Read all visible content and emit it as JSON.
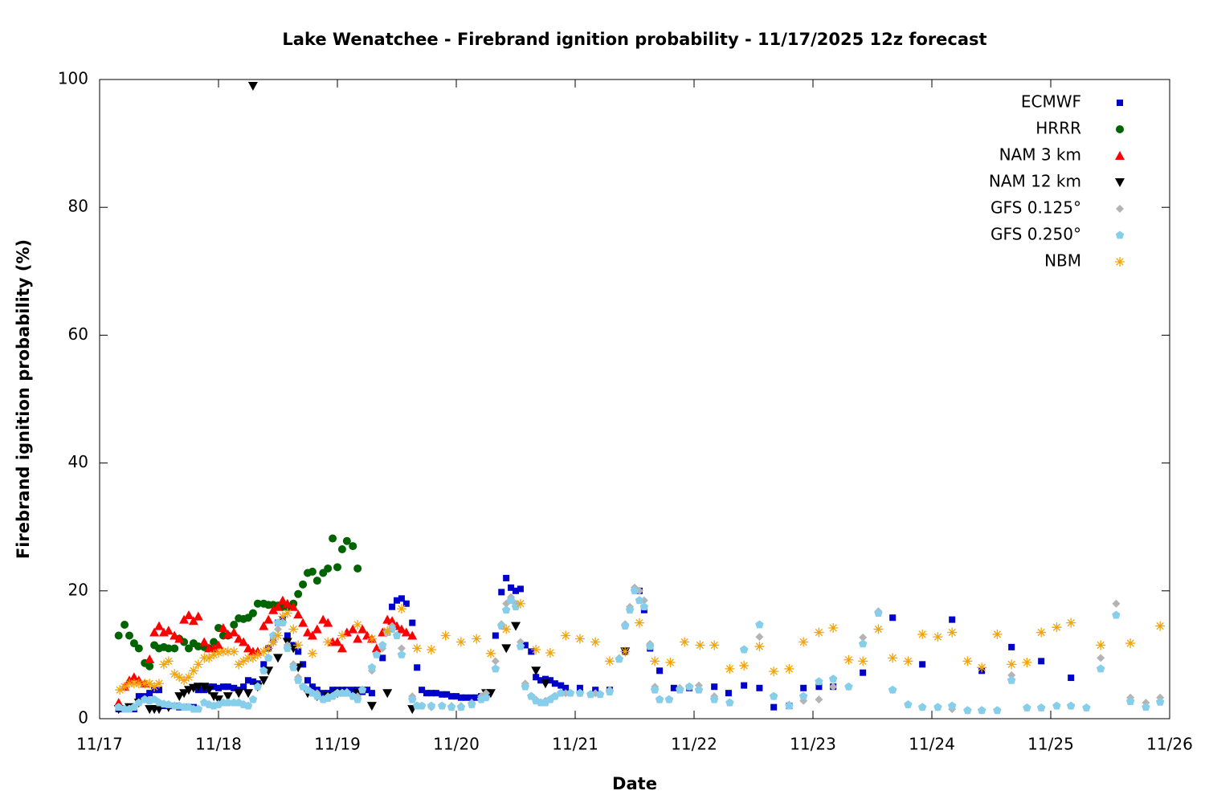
{
  "chart_data": {
    "type": "scatter",
    "title": "Lake Wenatchee - Firebrand ignition probability - 11/17/2025 12z forecast",
    "x_label": "Date",
    "y_label": "Firebrand ignition probability (%)",
    "xlim": [
      0,
      9
    ],
    "xticks": [
      {
        "value": 0,
        "label": "11/17"
      },
      {
        "value": 1,
        "label": "11/18"
      },
      {
        "value": 2,
        "label": "11/19"
      },
      {
        "value": 3,
        "label": "11/20"
      },
      {
        "value": 4,
        "label": "11/21"
      },
      {
        "value": 5,
        "label": "11/22"
      },
      {
        "value": 6,
        "label": "11/23"
      },
      {
        "value": 7,
        "label": "11/24"
      },
      {
        "value": 8,
        "label": "11/25"
      },
      {
        "value": 9,
        "label": "11/26"
      }
    ],
    "ylim": [
      0,
      100
    ],
    "yticks": [
      0,
      20,
      40,
      60,
      80,
      100
    ],
    "grid": false,
    "legend": "upper right",
    "series": [
      {
        "name": "ECMWF",
        "color": "#0000cc",
        "marker": "square",
        "x": [
          0.16,
          0.21,
          0.25,
          0.29,
          0.33,
          0.38,
          0.42,
          0.46,
          0.5,
          0.54,
          0.58,
          0.63,
          0.67,
          0.71,
          0.75,
          0.79,
          0.83,
          0.88,
          0.92,
          0.96,
          1.0,
          1.04,
          1.08,
          1.13,
          1.17,
          1.21,
          1.25,
          1.29,
          1.33,
          1.38,
          1.42,
          1.46,
          1.5,
          1.54,
          1.58,
          1.63,
          1.67,
          1.71,
          1.75,
          1.79,
          1.83,
          1.88,
          1.92,
          1.96,
          2.0,
          2.04,
          2.08,
          2.13,
          2.17,
          2.21,
          2.25,
          2.29,
          2.38,
          2.42,
          2.46,
          2.5,
          2.54,
          2.58,
          2.63,
          2.67,
          2.71,
          2.75,
          2.79,
          2.83,
          2.88,
          2.92,
          2.96,
          3.0,
          3.04,
          3.08,
          3.13,
          3.17,
          3.21,
          3.25,
          3.33,
          3.38,
          3.42,
          3.46,
          3.5,
          3.54,
          3.58,
          3.63,
          3.67,
          3.71,
          3.75,
          3.79,
          3.83,
          3.88,
          3.92,
          4.04,
          4.17,
          4.29,
          4.42,
          4.54,
          4.58,
          4.63,
          4.71,
          4.83,
          4.96,
          5.17,
          5.29,
          5.42,
          5.55,
          5.67,
          5.8,
          5.92,
          6.05,
          6.17,
          6.42,
          6.67,
          6.92,
          7.17,
          7.42,
          7.67,
          7.92,
          8.17
        ],
        "values": [
          1.5,
          1.5,
          1.5,
          1.5,
          3.5,
          3.5,
          4,
          4.5,
          4.5,
          2,
          2,
          2,
          1.8,
          1.8,
          1.8,
          1.8,
          4.5,
          4.5,
          5,
          5,
          4.8,
          5,
          5,
          4.8,
          4.5,
          5,
          6,
          5.8,
          5.5,
          8.5,
          11,
          12.5,
          15,
          15.5,
          13,
          11.5,
          10.5,
          8.5,
          6,
          5,
          4.5,
          4,
          4,
          4.5,
          4.5,
          4.5,
          4.5,
          4.5,
          4.5,
          4.2,
          4.5,
          4,
          9.5,
          13.5,
          17.5,
          18.5,
          18.8,
          18,
          15,
          8,
          4.5,
          4,
          4,
          4,
          3.8,
          3.8,
          3.5,
          3.5,
          3.3,
          3.3,
          3.3,
          3.3,
          3.5,
          4,
          13,
          19.8,
          22,
          20.5,
          20,
          20.3,
          11.5,
          10.5,
          6.5,
          6,
          6.2,
          6,
          5.5,
          5.2,
          4.8,
          4.8,
          4.5,
          4.5,
          10.5,
          20,
          17,
          11,
          7.5,
          4.8,
          4.8,
          5,
          4,
          5.2,
          4.8,
          1.8,
          2,
          4.8,
          5,
          5,
          7.2,
          15.8,
          8.5,
          15.5,
          7.5,
          11.2,
          9,
          6.4
        ]
      },
      {
        "name": "HRRR",
        "color": "#006400",
        "marker": "circle",
        "x": [
          0.16,
          0.21,
          0.25,
          0.29,
          0.33,
          0.38,
          0.42,
          0.46,
          0.5,
          0.54,
          0.58,
          0.63,
          0.67,
          0.71,
          0.75,
          0.79,
          0.83,
          0.88,
          0.92,
          0.96,
          1.0,
          1.04,
          1.08,
          1.13,
          1.17,
          1.21,
          1.25,
          1.29,
          1.33,
          1.38,
          1.42,
          1.46,
          1.5,
          1.54,
          1.58,
          1.63,
          1.67,
          1.71,
          1.75,
          1.79,
          1.83,
          1.88,
          1.92,
          1.96,
          2.0,
          2.04,
          2.08,
          2.13,
          2.17
        ],
        "values": [
          13,
          14.7,
          13,
          11.8,
          11,
          8.7,
          8.2,
          11.5,
          11,
          11.2,
          11,
          11,
          12.5,
          12,
          11,
          11.8,
          11.3,
          11.2,
          11,
          12,
          14.2,
          13,
          13,
          14.7,
          15.7,
          15.6,
          15.8,
          16.5,
          18,
          18,
          17.8,
          17.8,
          17.7,
          17.5,
          17.5,
          18,
          19.5,
          21,
          22.8,
          23,
          21.6,
          22.8,
          23.5,
          28.2,
          23.7,
          26.5,
          27.8,
          27,
          23.5
        ]
      },
      {
        "name": "NAM 3 km",
        "color": "#ff0000",
        "marker": "triangle-up",
        "x": [
          0.16,
          0.21,
          0.25,
          0.29,
          0.33,
          0.38,
          0.42,
          0.46,
          0.5,
          0.54,
          0.58,
          0.63,
          0.67,
          0.71,
          0.75,
          0.79,
          0.83,
          0.88,
          0.92,
          0.96,
          1.0,
          1.04,
          1.08,
          1.13,
          1.17,
          1.21,
          1.25,
          1.29,
          1.33,
          1.38,
          1.42,
          1.46,
          1.5,
          1.54,
          1.58,
          1.63,
          1.67,
          1.71,
          1.75,
          1.79,
          1.83,
          1.88,
          1.92,
          1.96,
          2.0,
          2.04,
          2.08,
          2.13,
          2.17,
          2.21,
          2.25,
          2.29,
          2.33,
          2.38,
          2.42,
          2.46,
          2.5,
          2.54,
          2.58,
          2.63
        ],
        "values": [
          2.5,
          5,
          6,
          6.5,
          6,
          5.5,
          9.3,
          13.5,
          14.5,
          13.5,
          13.8,
          13,
          12.5,
          15.5,
          16.2,
          15.3,
          16,
          12,
          11,
          11,
          11.5,
          14.2,
          13.2,
          13.5,
          12.5,
          12,
          11,
          10.5,
          10.5,
          14.5,
          15.5,
          17,
          17.5,
          18.5,
          18,
          17.5,
          16.3,
          15,
          13.5,
          13,
          14,
          15.5,
          15,
          12,
          12,
          11,
          13.5,
          14,
          12.5,
          14,
          13,
          12.5,
          11,
          13.5,
          15.5,
          15.3,
          14.5,
          14,
          13.5,
          13
        ]
      },
      {
        "name": "NAM 12 km",
        "color": "#000000",
        "marker": "triangle-down",
        "x": [
          0.16,
          0.25,
          0.33,
          0.42,
          0.46,
          0.5,
          0.58,
          0.67,
          0.71,
          0.75,
          0.79,
          0.83,
          0.88,
          0.92,
          0.96,
          1.0,
          1.08,
          1.17,
          1.25,
          1.29,
          1.33,
          1.38,
          1.42,
          1.5,
          1.58,
          1.63,
          1.67,
          1.75,
          1.83,
          1.92,
          2.0,
          2.17,
          2.29,
          2.42,
          2.63,
          3.25,
          3.29,
          3.42,
          3.5,
          3.67,
          3.75,
          4.42
        ],
        "values": [
          1.5,
          1.8,
          2.5,
          1.5,
          1.5,
          1.5,
          1.8,
          3.5,
          4,
          4.5,
          4.8,
          5,
          5,
          4.5,
          3.5,
          3,
          3.5,
          4,
          4,
          99,
          5,
          6,
          7.5,
          9.5,
          12,
          11,
          8,
          4,
          3.5,
          3.5,
          4,
          4,
          2,
          4,
          1.5,
          4,
          4,
          11,
          14.5,
          7.5,
          5.5,
          10.5
        ]
      },
      {
        "name": "GFS 0.125°",
        "color": "#b4b4b4",
        "marker": "diamond",
        "x": [
          1.46,
          1.5,
          1.54,
          1.58,
          1.63,
          1.67,
          1.75,
          1.83,
          1.92,
          2.0,
          2.08,
          2.17,
          2.29,
          2.38,
          2.46,
          2.54,
          2.63,
          2.71,
          2.79,
          2.88,
          2.96,
          3.04,
          3.13,
          3.21,
          3.25,
          3.33,
          3.38,
          3.42,
          3.46,
          3.5,
          3.54,
          3.58,
          3.67,
          3.75,
          3.83,
          3.92,
          4.04,
          4.17,
          4.29,
          4.37,
          4.42,
          4.46,
          4.5,
          4.54,
          4.58,
          4.63,
          4.67,
          4.71,
          4.79,
          4.88,
          4.96,
          5.04,
          5.17,
          5.3,
          5.42,
          5.55,
          5.67,
          5.8,
          5.92,
          6.05,
          6.17,
          6.3,
          6.42,
          6.55,
          6.67,
          6.8,
          6.92,
          7.05,
          7.17,
          7.3,
          7.42,
          7.55,
          7.67,
          7.8,
          7.92,
          8.05,
          8.17,
          8.3,
          8.42,
          8.55,
          8.67,
          8.8,
          8.92
        ],
        "values": [
          12,
          14,
          15,
          11.5,
          8.5,
          6.5,
          4.5,
          4,
          3.5,
          4,
          4.2,
          3.5,
          7.5,
          11,
          14.5,
          11,
          3.5,
          2,
          1.8,
          2,
          2,
          2,
          2.5,
          3.5,
          4,
          9,
          14.8,
          18,
          19,
          18,
          12,
          5.5,
          3,
          2.8,
          3.5,
          4,
          4,
          4,
          4.5,
          9.5,
          14.8,
          17.5,
          20.5,
          20,
          18.5,
          11.7,
          5,
          3,
          3,
          4.8,
          5,
          5.2,
          3.5,
          2.5,
          10.8,
          12.8,
          3.5,
          2.2,
          2.8,
          3,
          5,
          5,
          12.7,
          16.8,
          4.5,
          2.2,
          1.8,
          1.8,
          1.5,
          1.3,
          1.3,
          1.3,
          6.8,
          1.7,
          1.7,
          2,
          2,
          1.7,
          9.5,
          18,
          3.3,
          2.5,
          3.3
        ]
      },
      {
        "name": "GFS 0.250°",
        "color": "#87ceeb",
        "marker": "pentagon",
        "x": [
          0.16,
          0.21,
          0.25,
          0.29,
          0.33,
          0.38,
          0.42,
          0.46,
          0.5,
          0.54,
          0.58,
          0.63,
          0.67,
          0.71,
          0.75,
          0.79,
          0.83,
          0.88,
          0.92,
          0.96,
          1.0,
          1.04,
          1.08,
          1.13,
          1.17,
          1.21,
          1.25,
          1.29,
          1.33,
          1.38,
          1.42,
          1.46,
          1.5,
          1.54,
          1.58,
          1.63,
          1.67,
          1.71,
          1.75,
          1.79,
          1.83,
          1.88,
          1.92,
          1.96,
          2.0,
          2.04,
          2.08,
          2.13,
          2.17,
          2.21,
          2.29,
          2.33,
          2.38,
          2.42,
          2.46,
          2.5,
          2.54,
          2.63,
          2.67,
          2.71,
          2.79,
          2.88,
          2.96,
          3.04,
          3.13,
          3.21,
          3.25,
          3.33,
          3.38,
          3.42,
          3.46,
          3.5,
          3.54,
          3.58,
          3.63,
          3.67,
          3.71,
          3.75,
          3.79,
          3.83,
          3.88,
          3.96,
          4.04,
          4.13,
          4.21,
          4.29,
          4.37,
          4.42,
          4.46,
          4.5,
          4.54,
          4.58,
          4.63,
          4.67,
          4.71,
          4.79,
          4.88,
          4.96,
          5.04,
          5.17,
          5.3,
          5.42,
          5.55,
          5.67,
          5.8,
          5.92,
          6.05,
          6.17,
          6.3,
          6.42,
          6.55,
          6.67,
          6.8,
          6.92,
          7.05,
          7.17,
          7.3,
          7.42,
          7.55,
          7.67,
          7.8,
          7.92,
          8.05,
          8.17,
          8.3,
          8.42,
          8.55,
          8.67,
          8.8,
          8.92
        ],
        "values": [
          1.8,
          1.5,
          1.5,
          1.8,
          2.5,
          3,
          2.8,
          3,
          2.5,
          2.3,
          2.2,
          2,
          2,
          1.8,
          1.8,
          1.5,
          1.5,
          2.5,
          2.2,
          2,
          2.2,
          2.5,
          2.5,
          2.5,
          2.5,
          2.2,
          2,
          3,
          5,
          7.5,
          9.5,
          13,
          15,
          15,
          11,
          8,
          6,
          5,
          4.5,
          4,
          3.5,
          3,
          3.2,
          3.5,
          4,
          4,
          4,
          3.5,
          3,
          4.5,
          8,
          10,
          11.5,
          13.5,
          14,
          13,
          10,
          3,
          2,
          2,
          2,
          2,
          1.8,
          1.8,
          2.2,
          3,
          3.3,
          7.8,
          14.5,
          17,
          18.5,
          17.5,
          11.3,
          5,
          3.5,
          2.8,
          2.5,
          2.5,
          3,
          3.5,
          4,
          4,
          4,
          3.8,
          3.8,
          4.2,
          9.3,
          14.5,
          17,
          20,
          18.5,
          17.5,
          11.3,
          4.5,
          3,
          3,
          4.5,
          5,
          4.5,
          3,
          2.5,
          10.8,
          14.7,
          3.5,
          2,
          3.5,
          5.8,
          6.2,
          5,
          11.7,
          16.5,
          4.5,
          2.2,
          1.8,
          1.8,
          2,
          1.3,
          1.3,
          1.3,
          6,
          1.7,
          1.7,
          2,
          2,
          1.7,
          7.8,
          16.2,
          2.7,
          1.8,
          2.6
        ]
      },
      {
        "name": "NBM",
        "color": "#f5a300",
        "marker": "asterisk",
        "x": [
          0.17,
          0.21,
          0.25,
          0.29,
          0.33,
          0.38,
          0.42,
          0.46,
          0.5,
          0.54,
          0.58,
          0.63,
          0.67,
          0.71,
          0.75,
          0.79,
          0.83,
          0.88,
          0.92,
          0.96,
          1.0,
          1.04,
          1.08,
          1.13,
          1.17,
          1.21,
          1.25,
          1.29,
          1.33,
          1.38,
          1.42,
          1.46,
          1.5,
          1.54,
          1.58,
          1.63,
          1.67,
          1.79,
          1.92,
          2.04,
          2.17,
          2.29,
          2.42,
          2.54,
          2.67,
          2.79,
          2.91,
          3.04,
          3.17,
          3.29,
          3.42,
          3.54,
          3.67,
          3.79,
          3.92,
          4.04,
          4.17,
          4.29,
          4.42,
          4.54,
          4.67,
          4.8,
          4.92,
          5.05,
          5.17,
          5.3,
          5.42,
          5.55,
          5.67,
          5.8,
          5.92,
          6.05,
          6.17,
          6.3,
          6.42,
          6.55,
          6.67,
          6.8,
          6.92,
          7.05,
          7.17,
          7.3,
          7.42,
          7.55,
          7.67,
          7.8,
          7.92,
          8.05,
          8.17,
          8.42,
          8.67,
          8.92
        ],
        "values": [
          4.5,
          5,
          5.5,
          5.5,
          5.5,
          5.5,
          5.5,
          5,
          5.5,
          8.5,
          9,
          7,
          6.5,
          6,
          6.5,
          7.5,
          8.5,
          9.5,
          9.5,
          10,
          10.3,
          10.5,
          10.5,
          10.5,
          8.5,
          9,
          9.5,
          9.5,
          10,
          10.5,
          11,
          12,
          13,
          16,
          16.5,
          14,
          11.5,
          10.2,
          12,
          13,
          14.7,
          12.5,
          13.7,
          17.2,
          11,
          10.8,
          13,
          12,
          12.5,
          10.2,
          14,
          18,
          10.8,
          10.3,
          13,
          12.5,
          12,
          9,
          10.5,
          15,
          9,
          8.8,
          12,
          11.5,
          11.5,
          7.8,
          8.3,
          11.3,
          7.4,
          7.8,
          12,
          13.5,
          14.2,
          9.2,
          9,
          14,
          9.5,
          9,
          13.2,
          12.8,
          13.5,
          9,
          8,
          13.2,
          8.5,
          8.8,
          13.5,
          14.3,
          15,
          11.5,
          11.8,
          14.5
        ]
      }
    ]
  }
}
